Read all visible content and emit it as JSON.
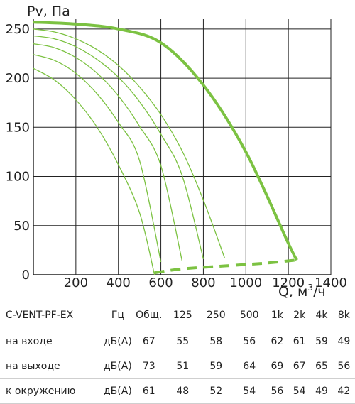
{
  "chart_data": {
    "type": "line",
    "ylabel": "Pv, Па",
    "xlabel_prefix": "Q, м",
    "xlabel_sup": "3",
    "xlabel_suffix": "/ч",
    "xlim": [
      0,
      1400
    ],
    "ylim": [
      0,
      260
    ],
    "xticks": [
      200,
      400,
      600,
      800,
      1000,
      1200,
      1400
    ],
    "yticks": [
      0,
      50,
      100,
      150,
      200,
      250
    ],
    "grid": true,
    "colors": {
      "curve": "#7cc242",
      "grid": "#222222"
    },
    "main_curve": {
      "x": [
        0,
        200,
        400,
        600,
        800,
        1000,
        1200,
        1240
      ],
      "y": [
        257,
        255,
        250,
        236,
        193,
        125,
        32,
        15
      ]
    },
    "speed_curves": [
      {
        "x": [
          0,
          100,
          200,
          300,
          400,
          500,
          600,
          700,
          800,
          900
        ],
        "y": [
          250,
          247,
          240,
          229,
          213,
          191,
          163,
          126,
          76,
          17
        ]
      },
      {
        "x": [
          0,
          100,
          200,
          300,
          400,
          500,
          600,
          700,
          800
        ],
        "y": [
          243,
          240,
          232,
          219,
          201,
          176,
          143,
          101,
          16
        ]
      },
      {
        "x": [
          0,
          100,
          200,
          300,
          400,
          500,
          600,
          700
        ],
        "y": [
          235,
          231,
          221,
          205,
          182,
          151,
          111,
          14
        ]
      },
      {
        "x": [
          0,
          100,
          200,
          300,
          400,
          500,
          600
        ],
        "y": [
          224,
          218,
          205,
          184,
          155,
          116,
          13
        ]
      },
      {
        "x": [
          0,
          100,
          200,
          300,
          400,
          500,
          570
        ],
        "y": [
          210,
          198,
          178,
          150,
          112,
          63,
          0
        ]
      }
    ],
    "min_line": {
      "x": [
        570,
        700,
        900,
        1100,
        1240
      ],
      "y": [
        2,
        6,
        9,
        12,
        15
      ]
    }
  },
  "noise_table": {
    "headers": [
      "C-VENT-PF-EX",
      "Гц",
      "Общ.",
      "125",
      "250",
      "500",
      "1k",
      "2k",
      "4k",
      "8k"
    ],
    "rows": [
      [
        "на входе",
        "дБ(А)",
        "67",
        "55",
        "58",
        "56",
        "62",
        "61",
        "59",
        "49"
      ],
      [
        "на выходе",
        "дБ(А)",
        "73",
        "51",
        "59",
        "64",
        "69",
        "67",
        "65",
        "56"
      ],
      [
        "к окружению",
        "дБ(А)",
        "61",
        "48",
        "52",
        "54",
        "56",
        "54",
        "49",
        "42"
      ]
    ]
  }
}
